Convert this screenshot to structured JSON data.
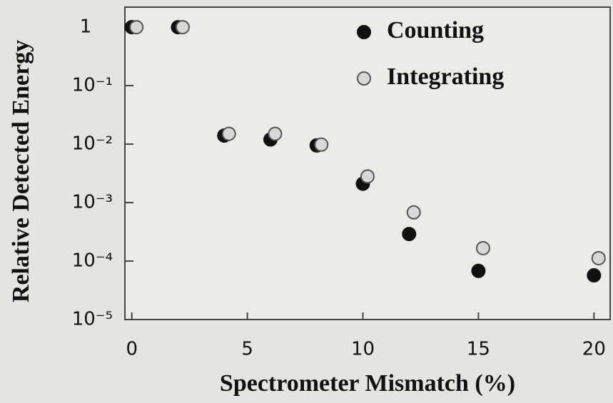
{
  "chart_data": {
    "type": "scatter",
    "xlabel": "Spectrometer Mismatch (%)",
    "ylabel": "Relative Detected Energy",
    "log_y": true,
    "xlim": [
      -0.3,
      20.7
    ],
    "xticks": [
      0,
      5,
      10,
      15,
      20
    ],
    "ylim": [
      1e-05,
      2.2
    ],
    "yticks": [
      1,
      {
        "value": 0.1,
        "label": "10⁻¹"
      },
      {
        "value": 0.01,
        "label": "10⁻²"
      },
      {
        "value": 0.001,
        "label": "10⁻³"
      },
      {
        "value": 0.0001,
        "label": "10⁻⁴"
      },
      {
        "value": 1e-05,
        "label": "10⁻⁵"
      }
    ],
    "legend": "top-right",
    "series": [
      {
        "name": "Counting",
        "color": "#111111",
        "filled": true,
        "x": [
          0,
          2,
          4,
          6,
          8,
          10,
          12,
          15,
          20
        ],
        "values": [
          1,
          1,
          0.014,
          0.012,
          0.0095,
          0.0021,
          0.00029,
          6.8e-05,
          5.7e-05
        ]
      },
      {
        "name": "Integrating",
        "color": "#555555",
        "filled": false,
        "x": [
          0.2,
          2.2,
          4.2,
          6.2,
          8.2,
          10.2,
          12.2,
          15.2,
          20.2
        ],
        "values": [
          1,
          1,
          0.015,
          0.015,
          0.0098,
          0.0028,
          0.00068,
          0.000166,
          0.000112
        ]
      }
    ]
  }
}
